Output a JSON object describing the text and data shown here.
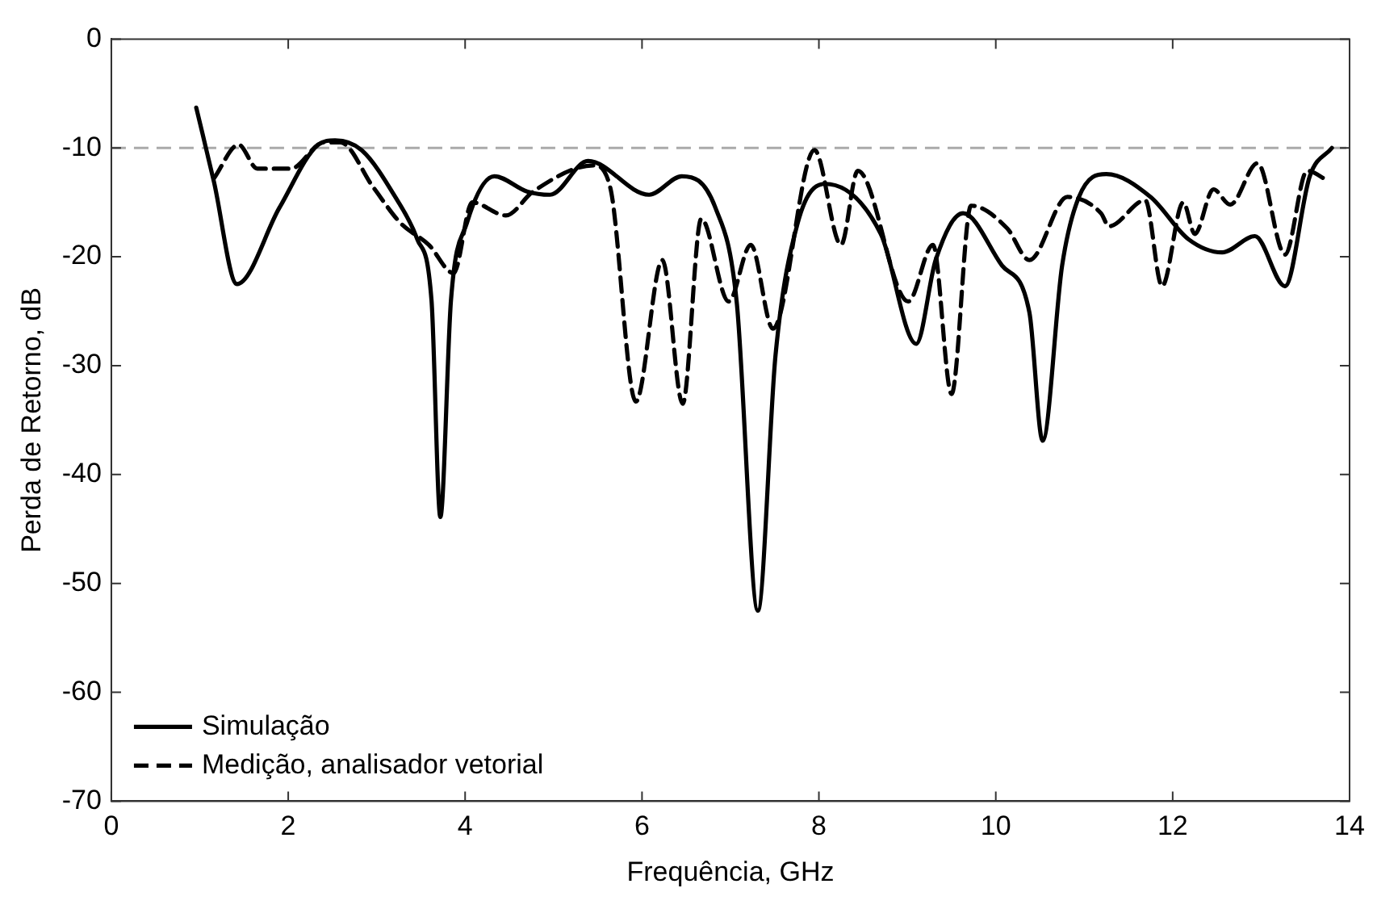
{
  "chart_data": {
    "type": "line",
    "xlabel": "Frequência, GHz",
    "ylabel": "Perda de Retorno, dB",
    "xlim": [
      0,
      14
    ],
    "ylim": [
      -70,
      0
    ],
    "xticks": [
      0,
      2,
      4,
      6,
      8,
      10,
      12,
      14
    ],
    "yticks": [
      -70,
      -60,
      -50,
      -40,
      -30,
      -20,
      -10,
      0
    ],
    "grid": false,
    "legend": "bottom left",
    "marker": "none",
    "ref_lines": [
      {
        "axis": "y",
        "value": -10,
        "color": "#aaaaaa",
        "line_style": "dashed"
      }
    ],
    "series": [
      {
        "name": "Simulação",
        "color": "#000000",
        "line_style": "solid",
        "x": [
          0.96,
          1.16,
          1.42,
          1.9,
          2.34,
          2.53,
          2.83,
          3.21,
          3.46,
          3.62,
          3.72,
          3.84,
          4.02,
          4.33,
          4.7,
          4.96,
          5.39,
          6.08,
          6.45,
          6.83,
          7.07,
          7.31,
          7.51,
          7.76,
          8.07,
          8.7,
          9.1,
          9.32,
          9.63,
          10.07,
          10.38,
          10.53,
          10.75,
          10.94,
          11.25,
          11.75,
          12.18,
          12.56,
          12.93,
          13.27,
          13.55,
          13.8
        ],
        "values": [
          -6.3,
          -13.1,
          -22.5,
          -15.5,
          -9.7,
          -9.3,
          -10.2,
          -14.5,
          -18.4,
          -24,
          -43.9,
          -24,
          -16.9,
          -12.6,
          -14,
          -14.3,
          -11.2,
          -14.3,
          -12.6,
          -15.5,
          -24.1,
          -52.5,
          -29,
          -16.9,
          -13.3,
          -17.9,
          -28,
          -20.3,
          -16,
          -20.8,
          -25.1,
          -36.9,
          -20.8,
          -14.5,
          -12.4,
          -14.5,
          -18.4,
          -19.6,
          -18.1,
          -22.7,
          -12.6,
          -10
        ]
      },
      {
        "name": "Medição, analisador vetorial",
        "color": "#000000",
        "line_style": "dashed",
        "x": [
          1.16,
          1.44,
          1.65,
          2.03,
          2.4,
          2.59,
          2.96,
          3.27,
          3.59,
          3.87,
          4.08,
          4.46,
          4.77,
          5.45,
          5.64,
          5.93,
          6.23,
          6.46,
          6.67,
          6.98,
          7.23,
          7.48,
          7.95,
          8.25,
          8.44,
          9.01,
          9.29,
          9.5,
          9.72,
          10.13,
          10.38,
          10.81,
          11.19,
          11.28,
          11.69,
          11.88,
          12.12,
          12.25,
          12.46,
          12.65,
          12.96,
          13.27,
          13.52,
          13.77
        ],
        "values": [
          -12.8,
          -9.7,
          -11.9,
          -11.9,
          -9.5,
          -9.5,
          -13.6,
          -16.9,
          -18.9,
          -21.5,
          -15,
          -16.2,
          -14,
          -11.6,
          -13.6,
          -33.3,
          -20.3,
          -33.5,
          -16.5,
          -24.1,
          -18.9,
          -26.6,
          -10.2,
          -18.9,
          -12.1,
          -24.1,
          -18.9,
          -32.6,
          -15.3,
          -17.4,
          -20.3,
          -14.5,
          -16,
          -17.2,
          -14.8,
          -22.7,
          -15,
          -17.9,
          -13.8,
          -15.2,
          -11.4,
          -19.8,
          -12.1,
          -13.1
        ]
      }
    ]
  }
}
